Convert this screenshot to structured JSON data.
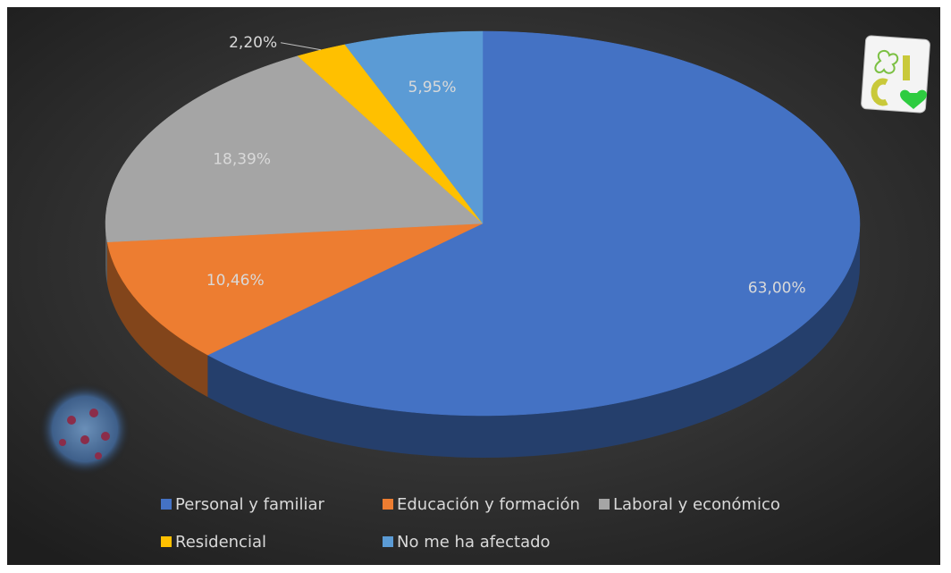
{
  "chart_data": {
    "type": "pie",
    "categories": [
      "Personal y familiar",
      "Educación y formación",
      "Laboral y económico",
      "Residencial",
      "No me ha afectado"
    ],
    "values": [
      63,
      10.46,
      18.39,
      2.2,
      5.95
    ],
    "value_labels": [
      "63,00%",
      "10,46%",
      "18,39%",
      "2,20%",
      "5,95%"
    ],
    "colors": [
      "#4472c4",
      "#ed7d31",
      "#a5a5a5",
      "#ffc000",
      "#5b9bd5"
    ],
    "legend": "bottom"
  }
}
